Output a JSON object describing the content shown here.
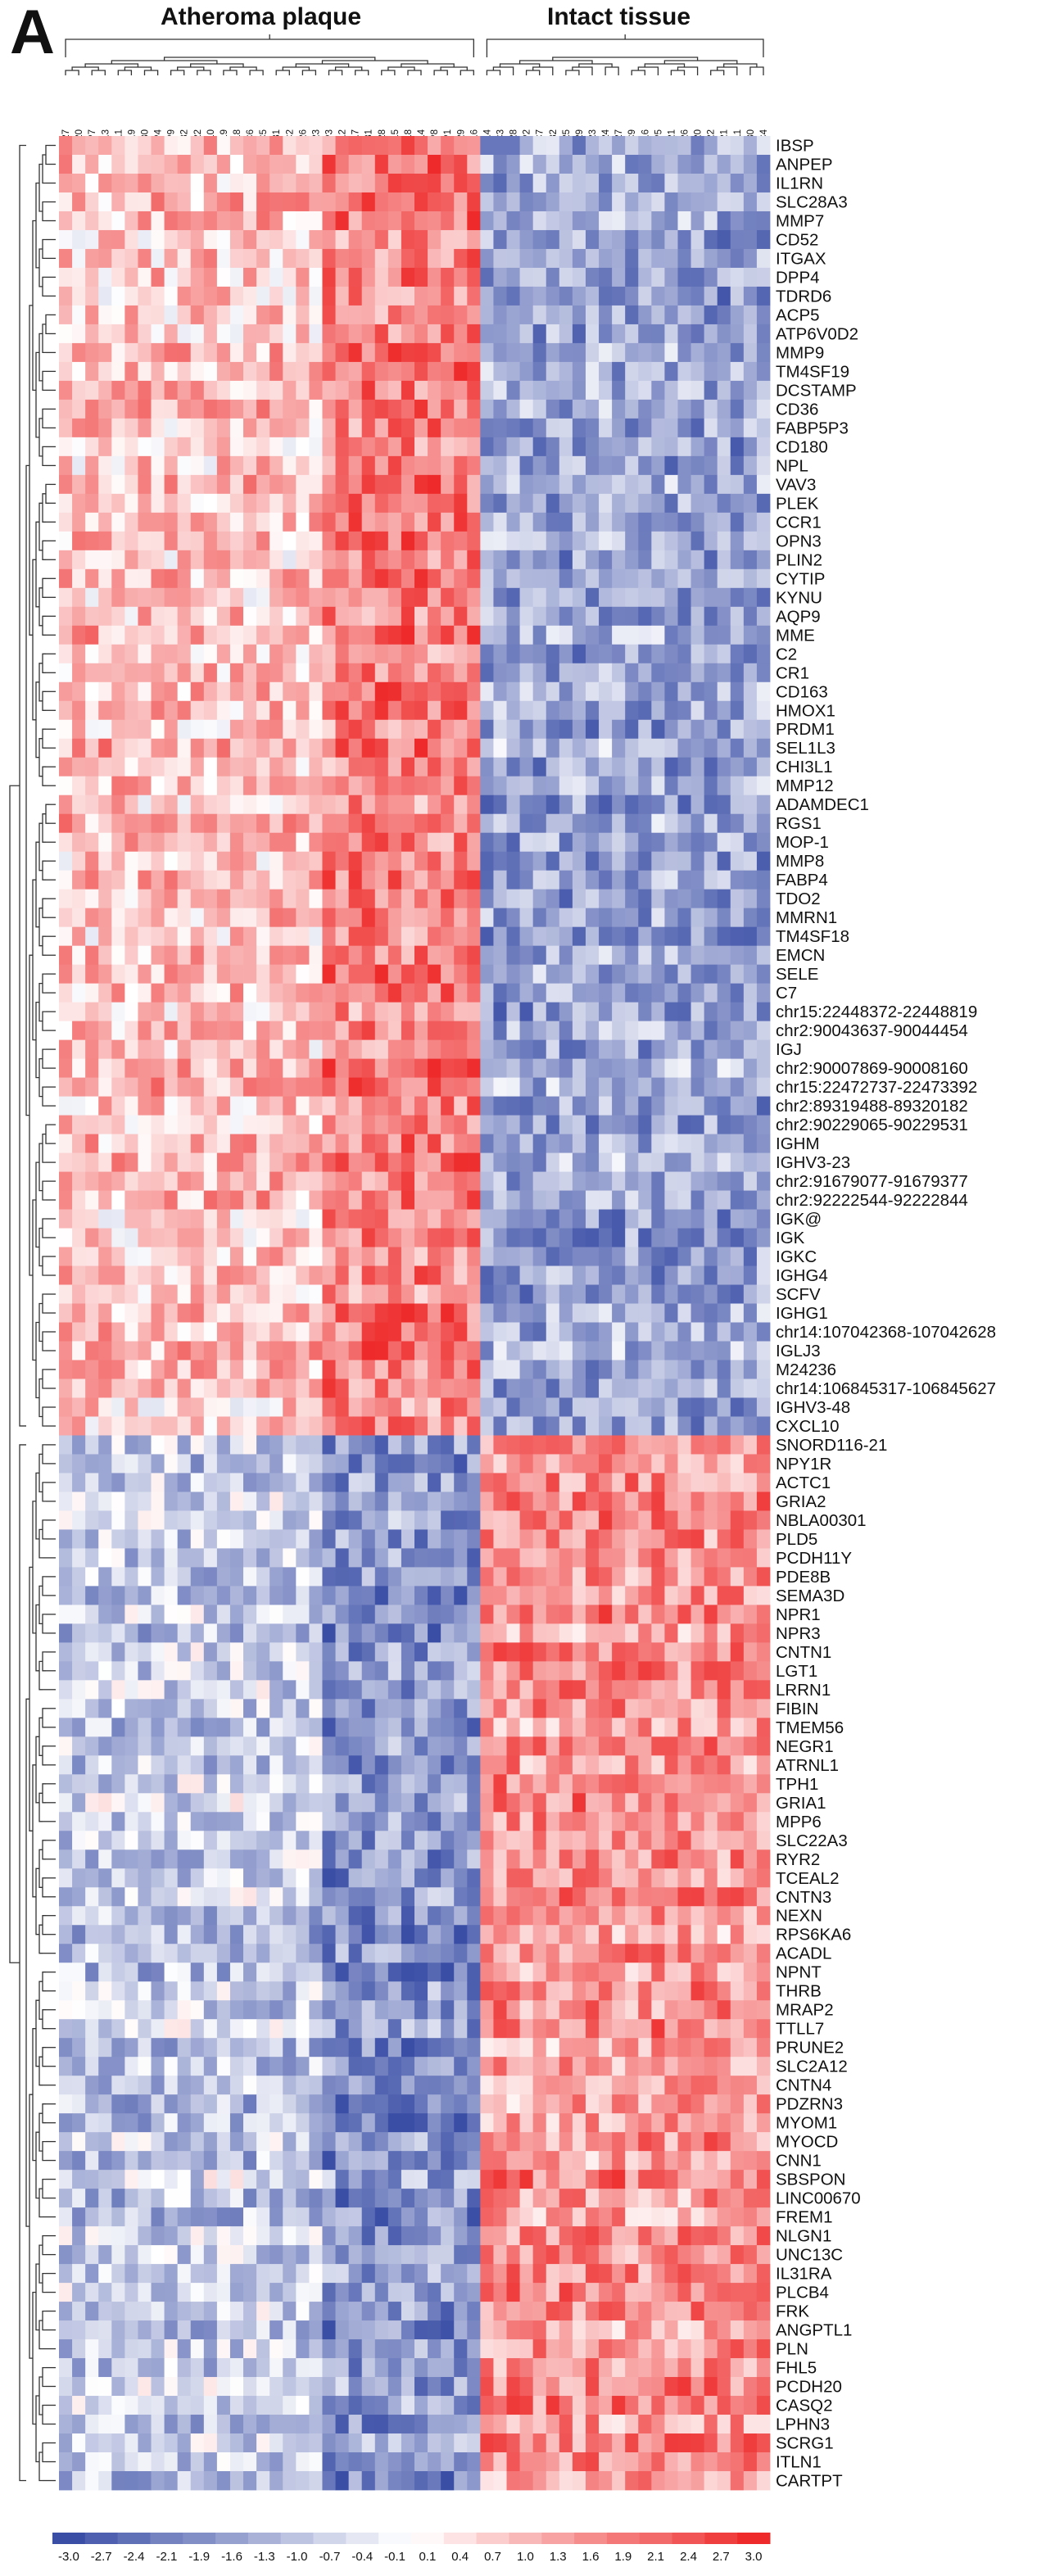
{
  "panel_label": "A",
  "chart_data": {
    "type": "heatmap",
    "groups": [
      {
        "name": "Atheroma plaque",
        "n_samples": 32
      },
      {
        "name": "Intact tissue",
        "n_samples": 22
      }
    ],
    "samples": [
      "P27",
      "P20",
      "P7",
      "P13",
      "P11",
      "P19",
      "P30",
      "P4",
      "P9",
      "P32",
      "C22",
      "P10",
      "C19",
      "C18",
      "C6",
      "C5",
      "C31",
      "C2",
      "P26",
      "P23",
      "P3",
      "P12",
      "P17",
      "P31",
      "P28",
      "P15",
      "P18",
      "P14",
      "P8",
      "P1",
      "P29",
      "P16",
      "C14",
      "C3",
      "C28",
      "P2",
      "C7",
      "C32",
      "P25",
      "C29",
      "C23",
      "C24",
      "C27",
      "C9",
      "C16",
      "P5",
      "C21",
      "C26",
      "C20",
      "P22",
      "P21",
      "C11",
      "C30",
      "C4"
    ],
    "genes": [
      "IBSP",
      "ANPEP",
      "IL1RN",
      "SLC28A3",
      "MMP7",
      "CD52",
      "ITGAX",
      "DPP4",
      "TDRD6",
      "ACP5",
      "ATP6V0D2",
      "MMP9",
      "TM4SF19",
      "DCSTAMP",
      "CD36",
      "FABP5P3",
      "CD180",
      "NPL",
      "VAV3",
      "PLEK",
      "CCR1",
      "OPN3",
      "PLIN2",
      "CYTIP",
      "KYNU",
      "AQP9",
      "MME",
      "C2",
      "CR1",
      "CD163",
      "HMOX1",
      "PRDM1",
      "SEL1L3",
      "CHI3L1",
      "MMP12",
      "ADAMDEC1",
      "RGS1",
      "MOP-1",
      "MMP8",
      "FABP4",
      "TDO2",
      "MMRN1",
      "TM4SF18",
      "EMCN",
      "SELE",
      "C7",
      "chr15:22448372-22448819",
      "chr2:90043637-90044454",
      "IGJ",
      "chr2:90007869-90008160",
      "chr15:22472737-22473392",
      "chr2:89319488-89320182",
      "chr2:90229065-90229531",
      "IGHM",
      "IGHV3-23",
      "chr2:91679077-91679377",
      "chr2:92222544-92222844",
      "IGK@",
      "IGK",
      "IGKC",
      "IGHG4",
      "SCFV",
      "IGHG1",
      "chr14:107042368-107042628",
      "IGLJ3",
      "M24236",
      "chr14:106845317-106845627",
      "IGHV3-48",
      "CXCL10",
      "SNORD116-21",
      "NPY1R",
      "ACTC1",
      "GRIA2",
      "NBLA00301",
      "PLD5",
      "PCDH11Y",
      "PDE8B",
      "SEMA3D",
      "NPR1",
      "NPR3",
      "CNTN1",
      "LGT1",
      "LRRN1",
      "FIBIN",
      "TMEM56",
      "NEGR1",
      "ATRNL1",
      "TPH1",
      "GRIA1",
      "MPP6",
      "SLC22A3",
      "RYR2",
      "TCEAL2",
      "CNTN3",
      "NEXN",
      "RPS6KA6",
      "ACADL",
      "NPNT",
      "THRB",
      "MRAP2",
      "TTLL7",
      "PRUNE2",
      "SLC2A12",
      "CNTN4",
      "PDZRN3",
      "MYOM1",
      "MYOCD",
      "CNN1",
      "SBSPON",
      "LINC00670",
      "FREM1",
      "NLGN1",
      "UNC13C",
      "IL31RA",
      "PLCB4",
      "FRK",
      "ANGPTL1",
      "PLN",
      "FHL5",
      "PCDH20",
      "CASQ2",
      "LPHN3",
      "SCRG1",
      "ITLN1",
      "CARTPT"
    ],
    "n_up_in_plaque": 69,
    "scale_ticks": [
      "-3.0",
      "-2.7",
      "-2.4",
      "-2.1",
      "-1.9",
      "-1.6",
      "-1.3",
      "-1.0",
      "-0.7",
      "-0.4",
      "-0.1",
      "0.1",
      "0.4",
      "0.7",
      "1.0",
      "1.3",
      "1.6",
      "1.9",
      "2.1",
      "2.4",
      "2.7",
      "3.0"
    ],
    "colormap": {
      "low": "#3a4ea6",
      "mid": "#ffffff",
      "high": "#ee2a2a"
    },
    "scale_range": [
      -3.0,
      3.0
    ]
  }
}
